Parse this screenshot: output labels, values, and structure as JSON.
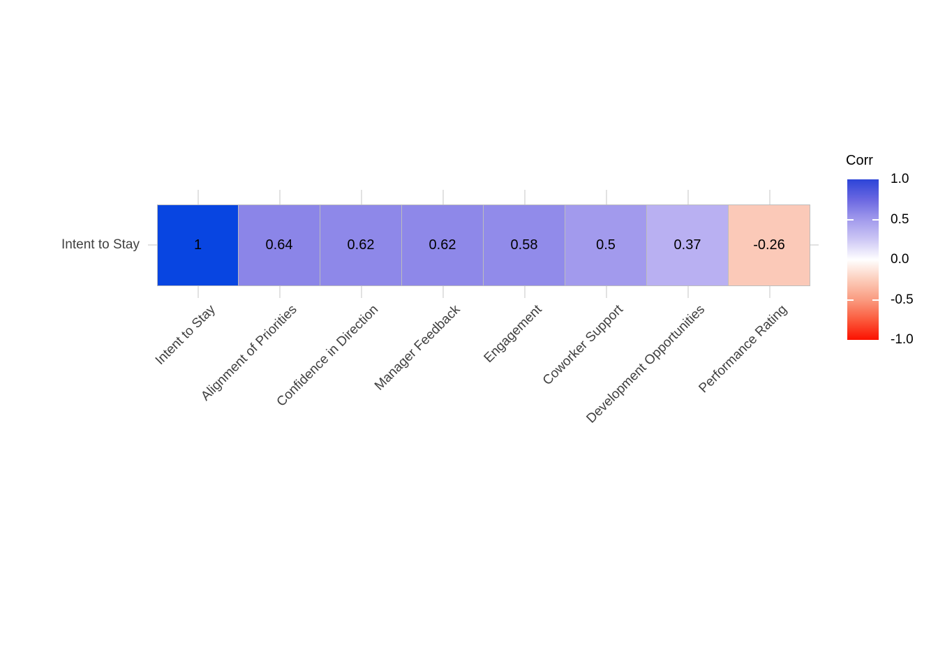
{
  "chart_data": {
    "type": "heatmap",
    "description": "Single-row correlation heatmap of drivers vs Intent to Stay",
    "row_label": "Intent to Stay",
    "categories": [
      "Intent to Stay",
      "Alignment of Priorities",
      "Confidence in Direction",
      "Manager Feedback",
      "Engagement",
      "Coworker Support",
      "Development Opportunities",
      "Performance Rating"
    ],
    "values": [
      1,
      0.64,
      0.62,
      0.62,
      0.58,
      0.5,
      0.37,
      -0.26
    ],
    "value_labels": [
      "1",
      "0.64",
      "0.62",
      "0.62",
      "0.58",
      "0.5",
      "0.37",
      "-0.26"
    ],
    "cell_colors": [
      "#0845e1",
      "#8b85e8",
      "#8e88e9",
      "#8e88e9",
      "#918bea",
      "#a29aed",
      "#b9b0f2",
      "#fbc9b8"
    ],
    "scale_range": [
      -1,
      1
    ],
    "grid": true,
    "legend_position": "right",
    "legend": {
      "title": "Corr",
      "tick_labels": [
        "1.0",
        "0.5",
        "0.0",
        "-0.5",
        "-1.0"
      ],
      "tick_values": [
        1.0,
        0.5,
        0.0,
        -0.5,
        -1.0
      ],
      "gradient_high": "#2c44d8",
      "gradient_mid": "#ffffff",
      "gradient_low": "#fb1100"
    }
  },
  "colors": {
    "background": "#ffffff",
    "gridline": "#e2e2e2",
    "tile_border": "#bdbdbd",
    "axis_text": "#404040",
    "value_text": "#000000"
  }
}
